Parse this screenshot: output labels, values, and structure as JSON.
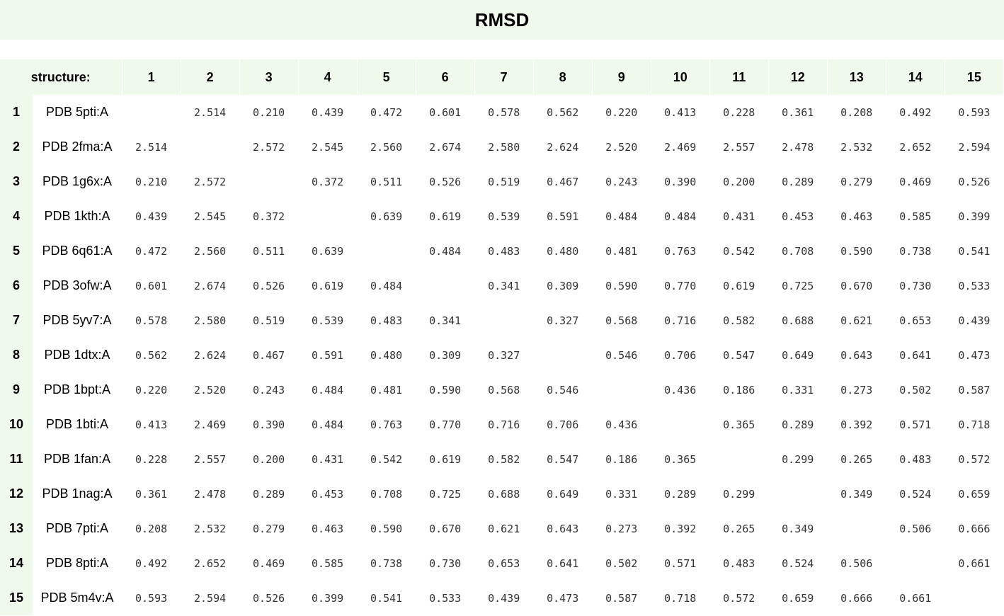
{
  "title": "RMSD",
  "table": {
    "header_label": "structure:",
    "columns": [
      "1",
      "2",
      "3",
      "4",
      "5",
      "6",
      "7",
      "8",
      "9",
      "10",
      "11",
      "12",
      "13",
      "14",
      "15"
    ],
    "rows": [
      {
        "num": "1",
        "name": "PDB 5pti:A",
        "values": [
          "",
          "2.514",
          "0.210",
          "0.439",
          "0.472",
          "0.601",
          "0.578",
          "0.562",
          "0.220",
          "0.413",
          "0.228",
          "0.361",
          "0.208",
          "0.492",
          "0.593"
        ]
      },
      {
        "num": "2",
        "name": "PDB 2fma:A",
        "values": [
          "2.514",
          "",
          "2.572",
          "2.545",
          "2.560",
          "2.674",
          "2.580",
          "2.624",
          "2.520",
          "2.469",
          "2.557",
          "2.478",
          "2.532",
          "2.652",
          "2.594"
        ]
      },
      {
        "num": "3",
        "name": "PDB 1g6x:A",
        "values": [
          "0.210",
          "2.572",
          "",
          "0.372",
          "0.511",
          "0.526",
          "0.519",
          "0.467",
          "0.243",
          "0.390",
          "0.200",
          "0.289",
          "0.279",
          "0.469",
          "0.526"
        ]
      },
      {
        "num": "4",
        "name": "PDB 1kth:A",
        "values": [
          "0.439",
          "2.545",
          "0.372",
          "",
          "0.639",
          "0.619",
          "0.539",
          "0.591",
          "0.484",
          "0.484",
          "0.431",
          "0.453",
          "0.463",
          "0.585",
          "0.399"
        ]
      },
      {
        "num": "5",
        "name": "PDB 6q61:A",
        "values": [
          "0.472",
          "2.560",
          "0.511",
          "0.639",
          "",
          "0.484",
          "0.483",
          "0.480",
          "0.481",
          "0.763",
          "0.542",
          "0.708",
          "0.590",
          "0.738",
          "0.541"
        ]
      },
      {
        "num": "6",
        "name": "PDB 3ofw:A",
        "values": [
          "0.601",
          "2.674",
          "0.526",
          "0.619",
          "0.484",
          "",
          "0.341",
          "0.309",
          "0.590",
          "0.770",
          "0.619",
          "0.725",
          "0.670",
          "0.730",
          "0.533"
        ]
      },
      {
        "num": "7",
        "name": "PDB 5yv7:A",
        "values": [
          "0.578",
          "2.580",
          "0.519",
          "0.539",
          "0.483",
          "0.341",
          "",
          "0.327",
          "0.568",
          "0.716",
          "0.582",
          "0.688",
          "0.621",
          "0.653",
          "0.439"
        ]
      },
      {
        "num": "8",
        "name": "PDB 1dtx:A",
        "values": [
          "0.562",
          "2.624",
          "0.467",
          "0.591",
          "0.480",
          "0.309",
          "0.327",
          "",
          "0.546",
          "0.706",
          "0.547",
          "0.649",
          "0.643",
          "0.641",
          "0.473"
        ]
      },
      {
        "num": "9",
        "name": "PDB 1bpt:A",
        "values": [
          "0.220",
          "2.520",
          "0.243",
          "0.484",
          "0.481",
          "0.590",
          "0.568",
          "0.546",
          "",
          "0.436",
          "0.186",
          "0.331",
          "0.273",
          "0.502",
          "0.587"
        ]
      },
      {
        "num": "10",
        "name": "PDB 1bti:A",
        "values": [
          "0.413",
          "2.469",
          "0.390",
          "0.484",
          "0.763",
          "0.770",
          "0.716",
          "0.706",
          "0.436",
          "",
          "0.365",
          "0.289",
          "0.392",
          "0.571",
          "0.718"
        ]
      },
      {
        "num": "11",
        "name": "PDB 1fan:A",
        "values": [
          "0.228",
          "2.557",
          "0.200",
          "0.431",
          "0.542",
          "0.619",
          "0.582",
          "0.547",
          "0.186",
          "0.365",
          "",
          "0.299",
          "0.265",
          "0.483",
          "0.572"
        ]
      },
      {
        "num": "12",
        "name": "PDB 1nag:A",
        "values": [
          "0.361",
          "2.478",
          "0.289",
          "0.453",
          "0.708",
          "0.725",
          "0.688",
          "0.649",
          "0.331",
          "0.289",
          "0.299",
          "",
          "0.349",
          "0.524",
          "0.659"
        ]
      },
      {
        "num": "13",
        "name": "PDB 7pti:A",
        "values": [
          "0.208",
          "2.532",
          "0.279",
          "0.463",
          "0.590",
          "0.670",
          "0.621",
          "0.643",
          "0.273",
          "0.392",
          "0.265",
          "0.349",
          "",
          "0.506",
          "0.666"
        ]
      },
      {
        "num": "14",
        "name": "PDB 8pti:A",
        "values": [
          "0.492",
          "2.652",
          "0.469",
          "0.585",
          "0.738",
          "0.730",
          "0.653",
          "0.641",
          "0.502",
          "0.571",
          "0.483",
          "0.524",
          "0.506",
          "",
          "0.661"
        ]
      },
      {
        "num": "15",
        "name": "PDB 5m4v:A",
        "values": [
          "0.593",
          "2.594",
          "0.526",
          "0.399",
          "0.541",
          "0.533",
          "0.439",
          "0.473",
          "0.587",
          "0.718",
          "0.572",
          "0.659",
          "0.666",
          "0.661",
          ""
        ]
      }
    ]
  }
}
